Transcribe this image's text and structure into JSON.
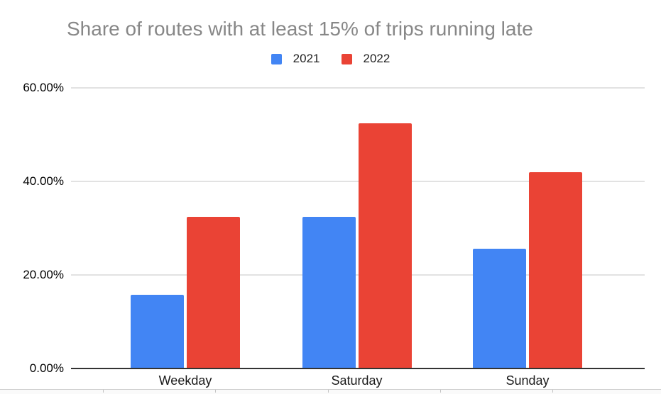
{
  "chart": {
    "title": "Share of routes with at least 15% of trips running late",
    "title_color": "#878787",
    "background_color": "#ffffff",
    "gridline_color": "#e2e2e2",
    "axis_line_color": "#333333"
  },
  "legend": {
    "position": "top",
    "items": [
      {
        "label": "2021",
        "color": "#4285F4"
      },
      {
        "label": "2022",
        "color": "#EA4335"
      }
    ]
  },
  "chart_data": {
    "type": "bar",
    "title": "Share of routes with at least 15% of trips running late",
    "categories": [
      "Weekday",
      "Saturday",
      "Sunday"
    ],
    "series": [
      {
        "name": "2021",
        "color": "#4285F4",
        "values": [
          15.8,
          32.5,
          25.6
        ]
      },
      {
        "name": "2022",
        "color": "#EA4335",
        "values": [
          32.5,
          52.4,
          42.0
        ]
      }
    ],
    "xlabel": "",
    "ylabel": "",
    "ylim": [
      0,
      60
    ],
    "yticks": [
      {
        "value": 0,
        "label": "0.00%"
      },
      {
        "value": 20,
        "label": "20.00%"
      },
      {
        "value": 40,
        "label": "40.00%"
      },
      {
        "value": 60,
        "label": "60.00%"
      }
    ],
    "grid": true,
    "legend_position": "top"
  }
}
